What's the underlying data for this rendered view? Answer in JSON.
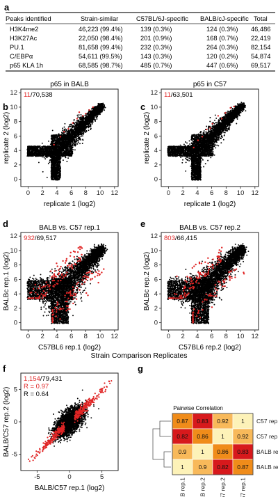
{
  "colors": {
    "highlight": "#e02525",
    "points": "#000000",
    "text": "#222222",
    "heat_red": "#d7191c",
    "heat_orange": "#f08c1a",
    "heat_yellow": "#fdf2b8"
  },
  "panel_a": {
    "letter": "a",
    "headers": [
      "Peaks identified",
      "Strain-similar",
      "C57BL/6J-specific",
      "BALB/cJ-specific",
      "Total"
    ],
    "rows": [
      [
        "H3K4me2",
        "46,223 (99.4%)",
        "139 (0.3%)",
        "124 (0.3%)",
        "46,486"
      ],
      [
        "H3K27Ac",
        "22,050 (98.4%)",
        "201 (0.9%)",
        "168 (0.7%)",
        "22,419"
      ],
      [
        "PU.1",
        "81,658 (99.4%)",
        "232 (0.3%)",
        "264 (0.3%)",
        "82,154"
      ],
      [
        "C/EBPα",
        "54,611 (99.5%)",
        "143 (0.3%)",
        "120 (0.2%)",
        "54,874"
      ],
      [
        "p65 KLA 1h",
        "68,585 (98.7%)",
        "485 (0.7%)",
        "447 (0.6%)",
        "69,517"
      ]
    ]
  },
  "chart_data": [
    {
      "id": "b",
      "letter": "b",
      "type": "scatter",
      "title": "p65 in BALB",
      "count_highlight": "11",
      "count_total": "/70,538",
      "xlabel": "replicate 1 (log2)",
      "ylabel": "replicate 2 (log2)",
      "xticks": [
        0,
        2,
        4,
        6,
        8,
        10,
        12
      ],
      "yticks": [
        0,
        2,
        4,
        6,
        8,
        10,
        12
      ],
      "xlim": [
        -1,
        12.5
      ],
      "ylim": [
        -1,
        12.5
      ],
      "threshold": 3.2,
      "series": [
        {
          "values": [
            [
              3.6,
              4.8
            ],
            [
              5.0,
              6.6
            ],
            [
              6.2,
              7.8
            ],
            [
              7.1,
              9.3
            ],
            [
              8.0,
              9.1
            ],
            [
              6.8,
              8.4
            ],
            [
              9.0,
              10.0
            ],
            [
              4.5,
              5.9
            ],
            [
              8.5,
              9.6
            ],
            [
              7.6,
              8.8
            ],
            [
              5.6,
              7.0
            ]
          ]
        }
      ]
    },
    {
      "id": "c",
      "letter": "c",
      "type": "scatter",
      "title": "p65 in C57",
      "count_highlight": "11",
      "count_total": "/63,501",
      "xlabel": "replicate 1 (log2)",
      "ylabel": "replicate 2 (log2)",
      "xticks": [
        0,
        2,
        4,
        6,
        8,
        10,
        12
      ],
      "yticks": [
        0,
        2,
        4,
        6,
        8,
        10,
        12
      ],
      "xlim": [
        -1,
        12.5
      ],
      "ylim": [
        -1,
        12.5
      ],
      "threshold": 3.2,
      "series": [
        {
          "values": [
            [
              3.5,
              4.4
            ],
            [
              4.7,
              5.9
            ],
            [
              6.1,
              7.7
            ],
            [
              6.9,
              8.8
            ],
            [
              7.9,
              9.2
            ],
            [
              8.6,
              9.9
            ],
            [
              5.3,
              6.9
            ],
            [
              9.1,
              10.1
            ],
            [
              4.1,
              5.4
            ],
            [
              7.4,
              8.4
            ],
            [
              5.8,
              7.1
            ]
          ]
        }
      ]
    },
    {
      "id": "d",
      "letter": "d",
      "type": "scatter",
      "title": "BALB vs. C57 rep.1",
      "count_highlight": "932",
      "count_total": "/69,517",
      "xlabel": "C57BL6 rep.1 (log2)",
      "ylabel": "BALBc rep.1 (log2)",
      "xticks": [
        0,
        2,
        4,
        6,
        8,
        10,
        12
      ],
      "yticks": [
        0,
        2,
        4,
        6,
        8,
        10,
        12
      ],
      "xlim": [
        -1,
        12.5
      ],
      "ylim": [
        -1,
        12.5
      ],
      "threshold": 3.2,
      "highlight_count": 932
    },
    {
      "id": "e",
      "letter": "e",
      "type": "scatter",
      "title": "BALB vs. C57  rep.2",
      "count_highlight": "803",
      "count_total": "/66,415",
      "xlabel": "C57BL6 rep.2 (log2)",
      "ylabel": "BALBc rep.2 (log2)",
      "xticks": [
        0,
        2,
        4,
        6,
        8,
        10,
        12
      ],
      "yticks": [
        0,
        2,
        4,
        6,
        8,
        10,
        12
      ],
      "xlim": [
        -1,
        12.5
      ],
      "ylim": [
        -1,
        12.5
      ],
      "threshold": 3.2,
      "highlight_count": 803
    },
    {
      "id": "f",
      "letter": "f",
      "type": "scatter",
      "count_highlight": "1,154",
      "count_total": "/79,431",
      "r_red": "R = 0.97",
      "r_black": "R = 0.64",
      "xlabel": "BALB/C57 rep.1 (log2)",
      "ylabel": "BALB/C57 rep.2 (log2)",
      "xticks": [
        -5,
        0,
        5
      ],
      "yticks": [
        -5,
        0,
        5
      ],
      "xlim": [
        -7.5,
        7.5
      ],
      "ylim": [
        -7.5,
        7.5
      ]
    },
    {
      "id": "g",
      "letter": "g",
      "type": "heatmap",
      "title": "Pairwise Correlation",
      "rows": [
        "C57 rep.1",
        "C57 rep.2",
        "BALB rep.2",
        "BALB rep.1"
      ],
      "cols": [
        "BALB rep.1",
        "BALB rep.2",
        "C57 rep.2",
        "C57 rep.1"
      ],
      "values": [
        [
          0.87,
          0.83,
          0.92,
          1
        ],
        [
          0.82,
          0.86,
          1,
          0.92
        ],
        [
          0.9,
          1,
          0.86,
          0.83
        ],
        [
          1,
          0.9,
          0.82,
          0.87
        ]
      ],
      "labels": [
        [
          "0.87",
          "0.83",
          "0.92",
          "1"
        ],
        [
          "0.82",
          "0.86",
          "1",
          "0.92"
        ],
        [
          "0.9",
          "1",
          "0.86",
          "0.83"
        ],
        [
          "1",
          "0.9",
          "0.82",
          "0.87"
        ]
      ]
    }
  ],
  "shared_label": "Strain Comparison Replicates"
}
